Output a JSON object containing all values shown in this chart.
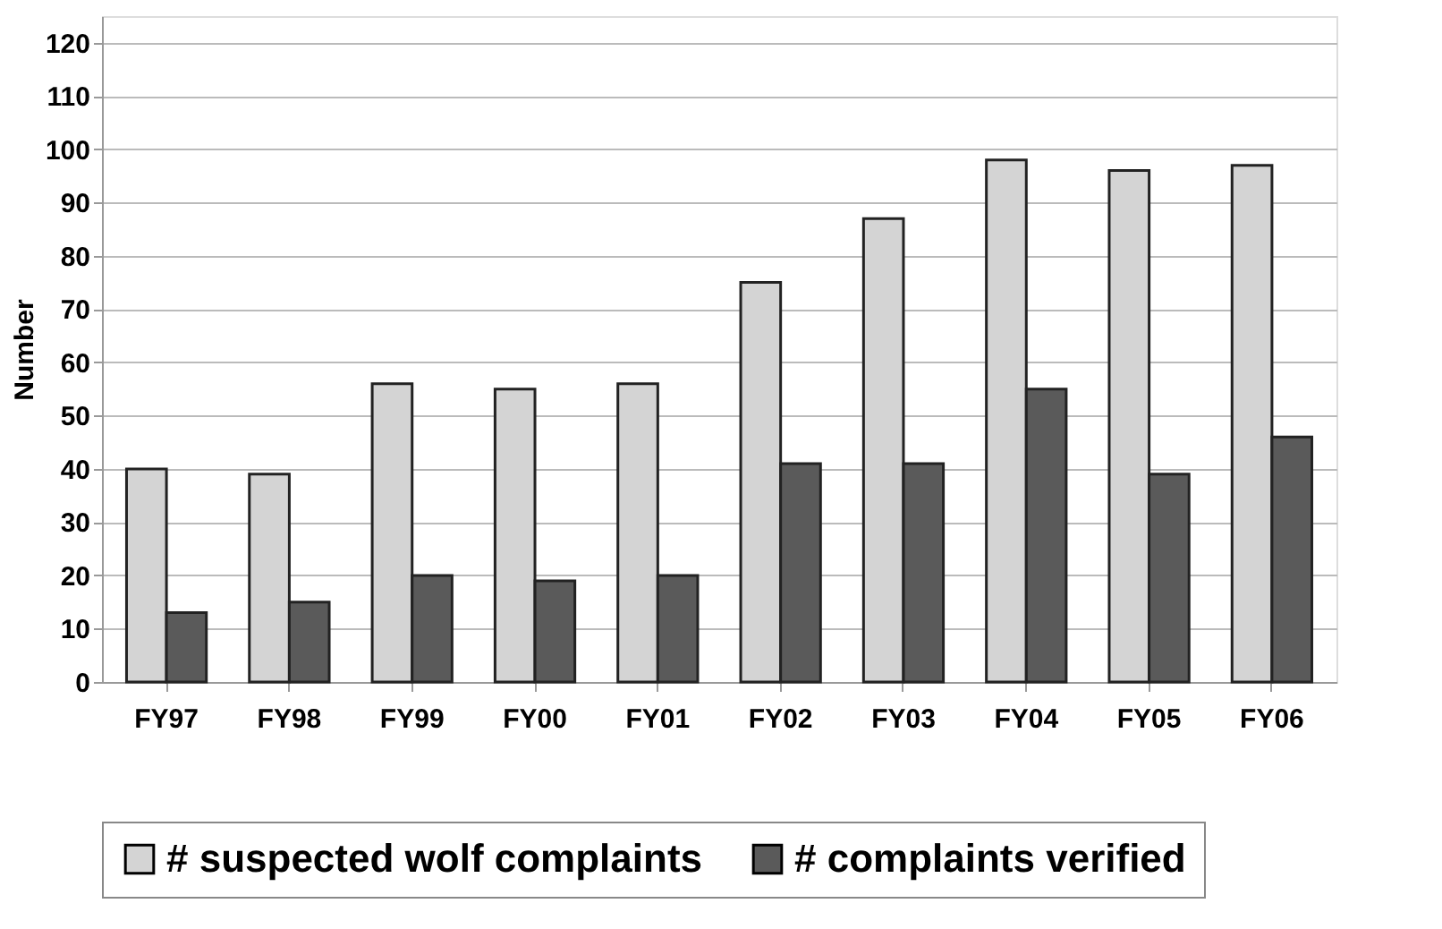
{
  "chart_data": {
    "type": "bar",
    "ylabel": "Number",
    "categories": [
      "FY97",
      "FY98",
      "FY99",
      "FY00",
      "FY01",
      "FY02",
      "FY03",
      "FY04",
      "FY05",
      "FY06"
    ],
    "series": [
      {
        "name": "# suspected wolf complaints",
        "color": "#d4d4d4",
        "values": [
          40,
          39,
          56,
          55,
          56,
          75,
          87,
          98,
          96,
          97
        ]
      },
      {
        "name": "# complaints verified",
        "color": "#5a5a5a",
        "values": [
          13,
          15,
          20,
          19,
          20,
          41,
          41,
          55,
          39,
          46
        ]
      }
    ],
    "ylim": [
      0,
      125
    ],
    "yticks": [
      0,
      10,
      20,
      30,
      40,
      50,
      60,
      70,
      80,
      90,
      100,
      110,
      120
    ],
    "grid": "y",
    "legend": "bottom"
  }
}
